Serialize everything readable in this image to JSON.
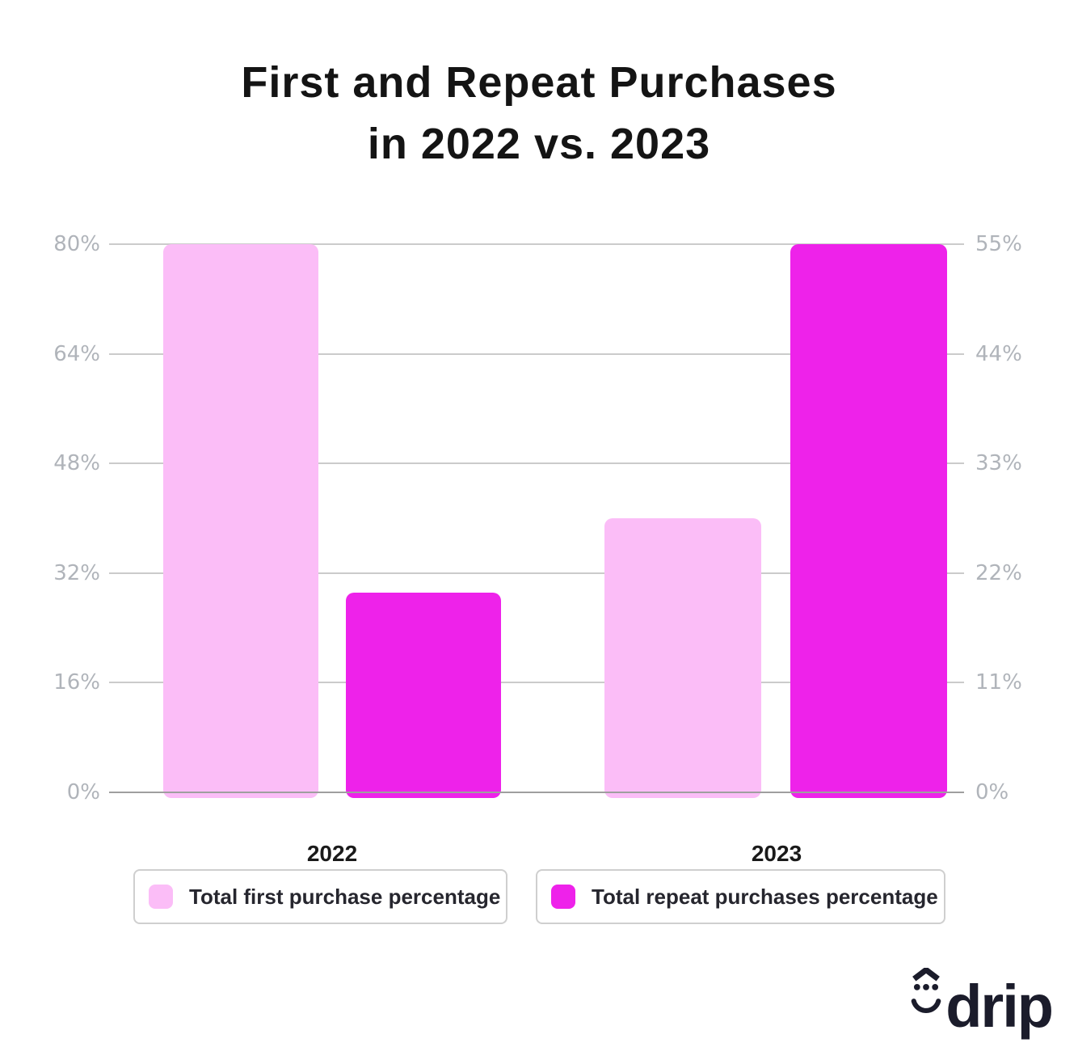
{
  "title": "First and Repeat Purchases\nin 2022 vs. 2023",
  "chart_data": {
    "type": "bar",
    "categories": [
      "2022",
      "2023"
    ],
    "series": [
      {
        "name": "Total first purchase percentage",
        "axis": "left",
        "color": "#fbbdf7",
        "values": [
          80,
          40
        ]
      },
      {
        "name": "Total repeat purchases percentage",
        "axis": "right",
        "color": "#ee22ea",
        "values": [
          20,
          55
        ]
      }
    ],
    "left_axis": {
      "max": 80,
      "tick_labels": [
        "80%",
        "64%",
        "48%",
        "32%",
        "16%",
        "0%"
      ]
    },
    "right_axis": {
      "max": 55,
      "tick_labels": [
        "55%",
        "44%",
        "33%",
        "22%",
        "11%",
        "0%"
      ]
    },
    "grid": true,
    "legend_position": "bottom",
    "colors": {
      "first_purchase": "#fbbdf7",
      "repeat_purchases": "#ee22ea",
      "gridline": "#cbcbcb",
      "baseline": "#9f9f9f",
      "tick_text": "#b0b4ba",
      "title_text": "#141414"
    }
  },
  "logo": {
    "text": "drip"
  }
}
